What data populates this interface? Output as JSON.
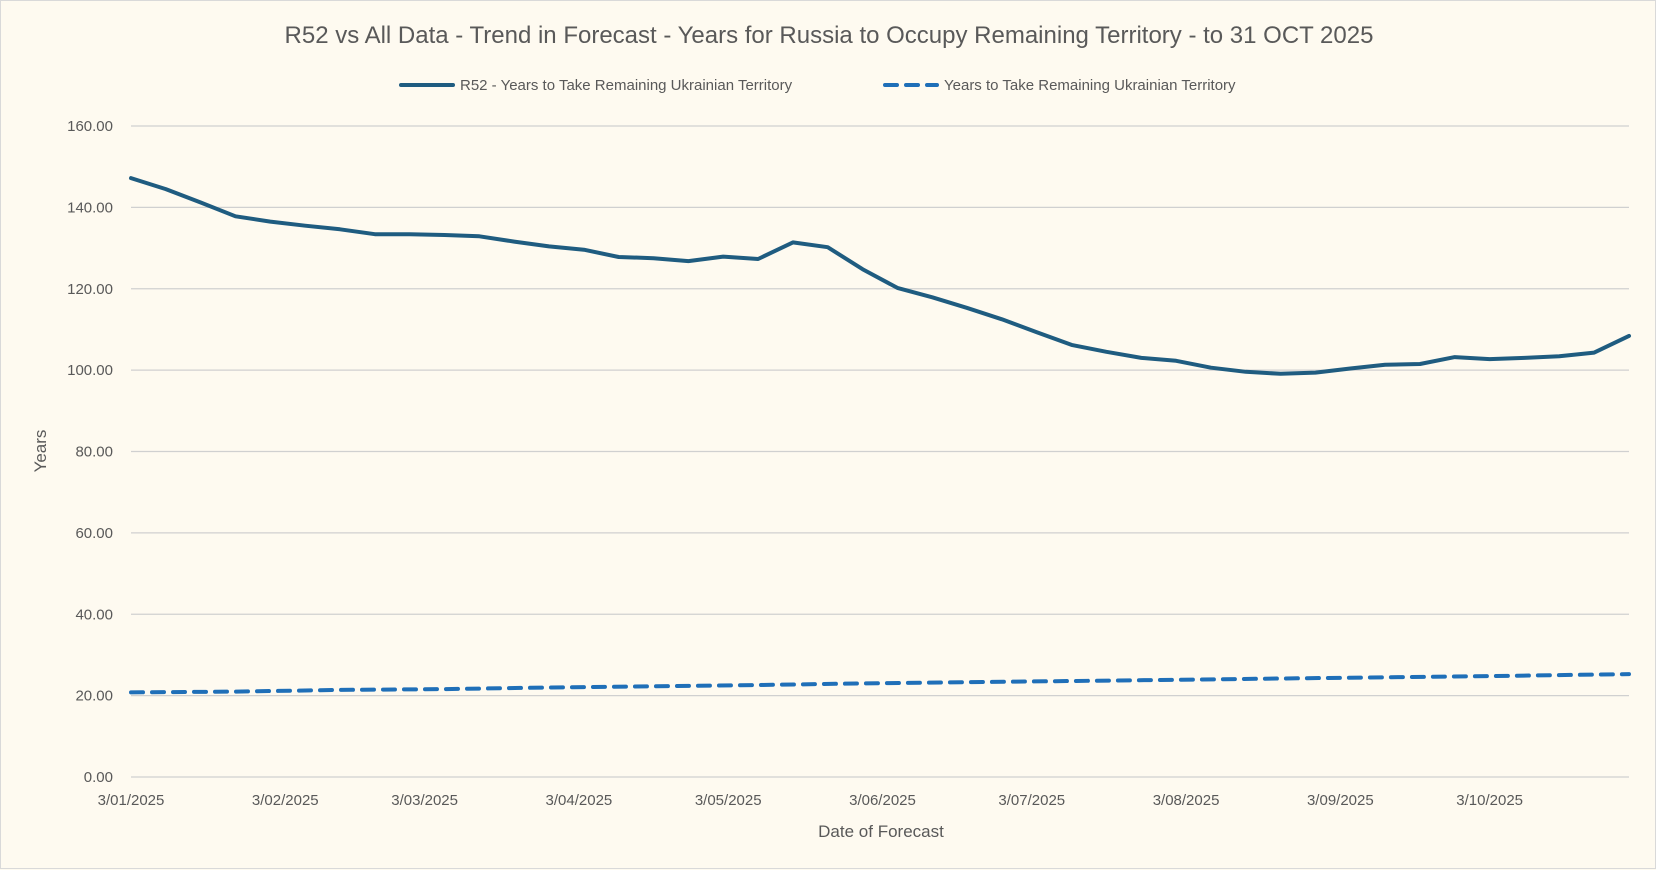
{
  "chart_data": {
    "type": "line",
    "title": "R52 vs All Data  - Trend in Forecast - Years for Russia to Occupy Remaining Territory - to 31 OCT 2025",
    "xlabel": "Date of Forecast",
    "ylabel": "Years",
    "ylim": [
      0,
      160
    ],
    "y_ticks": [
      "0.00",
      "20.00",
      "40.00",
      "60.00",
      "80.00",
      "100.00",
      "120.00",
      "140.00",
      "160.00"
    ],
    "x_range_days": [
      0,
      301
    ],
    "x_ticks": [
      {
        "label": "3/01/2025",
        "day": 0
      },
      {
        "label": "3/02/2025",
        "day": 31
      },
      {
        "label": "3/03/2025",
        "day": 59
      },
      {
        "label": "3/04/2025",
        "day": 90
      },
      {
        "label": "3/05/2025",
        "day": 120
      },
      {
        "label": "3/06/2025",
        "day": 151
      },
      {
        "label": "3/07/2025",
        "day": 181
      },
      {
        "label": "3/08/2025",
        "day": 212
      },
      {
        "label": "3/09/2025",
        "day": 243
      },
      {
        "label": "3/10/2025",
        "day": 273
      }
    ],
    "grid": true,
    "legend_position": "top-center",
    "series": [
      {
        "name": "R52 - Years to Take Remaining Ukrainian Territory",
        "color": "#1f5c80",
        "style": "solid",
        "x": [
          0,
          7,
          14,
          21,
          28,
          35,
          42,
          49,
          56,
          63,
          70,
          77,
          84,
          91,
          98,
          105,
          112,
          119,
          126,
          133,
          140,
          147,
          154,
          161,
          168,
          175,
          182,
          189,
          196,
          203,
          210,
          217,
          224,
          231,
          238,
          245,
          252,
          259,
          266,
          273,
          280,
          287,
          294,
          301
        ],
        "values": [
          147.2,
          144.5,
          141.2,
          137.8,
          136.5,
          135.5,
          134.6,
          133.4,
          133.4,
          133.2,
          132.9,
          131.6,
          130.4,
          129.6,
          127.8,
          127.5,
          126.8,
          127.9,
          127.3,
          131.4,
          130.2,
          124.8,
          120.2,
          117.9,
          115.3,
          112.5,
          109.3,
          106.2,
          104.5,
          103.0,
          102.3,
          100.6,
          99.6,
          99.1,
          99.4,
          100.4,
          101.3,
          101.5,
          103.2,
          102.7,
          103.0,
          103.4,
          104.3,
          108.4
        ]
      },
      {
        "name": "Years to Take Remaining Ukrainian Territory",
        "color": "#1f6fb8",
        "style": "dashed",
        "x": [
          0,
          21,
          42,
          63,
          84,
          105,
          126,
          147,
          168,
          189,
          210,
          231,
          252,
          273,
          301
        ],
        "values": [
          20.8,
          21.0,
          21.4,
          21.6,
          22.0,
          22.3,
          22.6,
          23.0,
          23.3,
          23.6,
          23.9,
          24.2,
          24.5,
          24.8,
          25.3
        ]
      }
    ]
  }
}
